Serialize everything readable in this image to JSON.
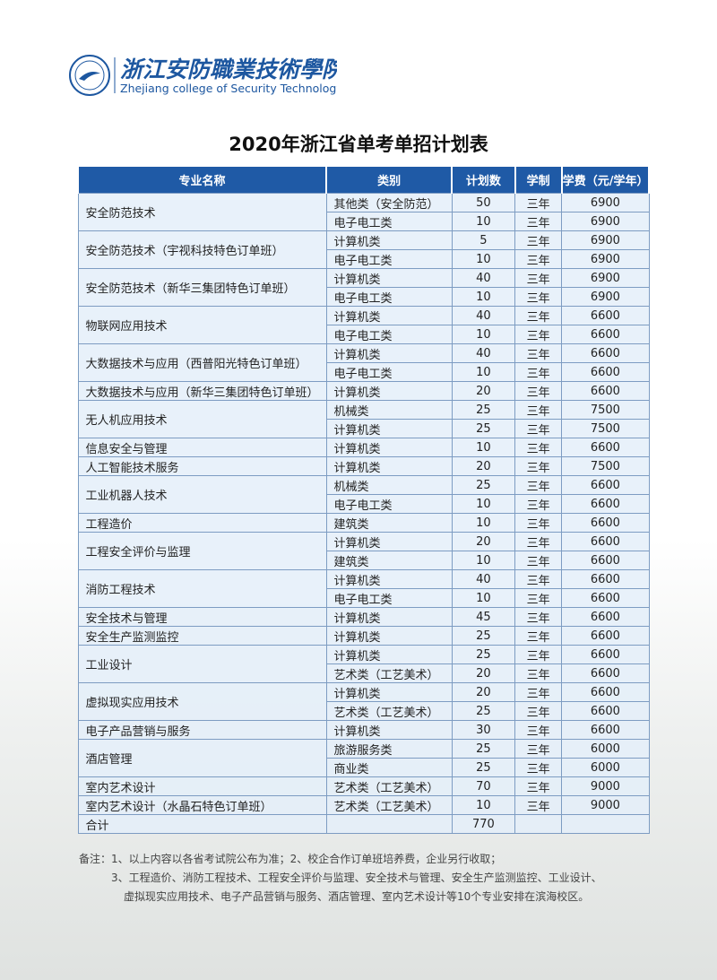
{
  "header": {
    "school_cn": "浙江安防職業技術學院",
    "school_en": "Zhejiang college of Security Technology"
  },
  "title": "2020年浙江省单考单招计划表",
  "table": {
    "columns": [
      "专业名称",
      "类别",
      "计划数",
      "学制",
      "学费（元/学年）"
    ],
    "majors": [
      {
        "name": "安全防范技术",
        "items": [
          {
            "category": "其他类（安全防范）",
            "plan": 50,
            "years": "三年",
            "fee": 6900
          },
          {
            "category": "电子电工类",
            "plan": 10,
            "years": "三年",
            "fee": 6900
          }
        ]
      },
      {
        "name": "安全防范技术（宇视科技特色订单班）",
        "items": [
          {
            "category": "计算机类",
            "plan": 5,
            "years": "三年",
            "fee": 6900
          },
          {
            "category": "电子电工类",
            "plan": 10,
            "years": "三年",
            "fee": 6900
          }
        ]
      },
      {
        "name": "安全防范技术（新华三集团特色订单班）",
        "items": [
          {
            "category": "计算机类",
            "plan": 40,
            "years": "三年",
            "fee": 6900
          },
          {
            "category": "电子电工类",
            "plan": 10,
            "years": "三年",
            "fee": 6900
          }
        ]
      },
      {
        "name": "物联网应用技术",
        "items": [
          {
            "category": "计算机类",
            "plan": 40,
            "years": "三年",
            "fee": 6600
          },
          {
            "category": "电子电工类",
            "plan": 10,
            "years": "三年",
            "fee": 6600
          }
        ]
      },
      {
        "name": "大数据技术与应用（西普阳光特色订单班）",
        "items": [
          {
            "category": "计算机类",
            "plan": 40,
            "years": "三年",
            "fee": 6600
          },
          {
            "category": "电子电工类",
            "plan": 10,
            "years": "三年",
            "fee": 6600
          }
        ]
      },
      {
        "name": "大数据技术与应用（新华三集团特色订单班）",
        "items": [
          {
            "category": "计算机类",
            "plan": 20,
            "years": "三年",
            "fee": 6600
          }
        ]
      },
      {
        "name": "无人机应用技术",
        "items": [
          {
            "category": "机械类",
            "plan": 25,
            "years": "三年",
            "fee": 7500
          },
          {
            "category": "计算机类",
            "plan": 25,
            "years": "三年",
            "fee": 7500
          }
        ]
      },
      {
        "name": "信息安全与管理",
        "items": [
          {
            "category": "计算机类",
            "plan": 10,
            "years": "三年",
            "fee": 6600
          }
        ]
      },
      {
        "name": "人工智能技术服务",
        "items": [
          {
            "category": "计算机类",
            "plan": 20,
            "years": "三年",
            "fee": 7500
          }
        ]
      },
      {
        "name": "工业机器人技术",
        "items": [
          {
            "category": "机械类",
            "plan": 25,
            "years": "三年",
            "fee": 6600
          },
          {
            "category": "电子电工类",
            "plan": 10,
            "years": "三年",
            "fee": 6600
          }
        ]
      },
      {
        "name": "工程造价",
        "items": [
          {
            "category": "建筑类",
            "plan": 10,
            "years": "三年",
            "fee": 6600
          }
        ]
      },
      {
        "name": "工程安全评价与监理",
        "items": [
          {
            "category": "计算机类",
            "plan": 20,
            "years": "三年",
            "fee": 6600
          },
          {
            "category": "建筑类",
            "plan": 10,
            "years": "三年",
            "fee": 6600
          }
        ]
      },
      {
        "name": "消防工程技术",
        "items": [
          {
            "category": "计算机类",
            "plan": 40,
            "years": "三年",
            "fee": 6600
          },
          {
            "category": "电子电工类",
            "plan": 10,
            "years": "三年",
            "fee": 6600
          }
        ]
      },
      {
        "name": "安全技术与管理",
        "items": [
          {
            "category": "计算机类",
            "plan": 45,
            "years": "三年",
            "fee": 6600
          }
        ]
      },
      {
        "name": "安全生产监测监控",
        "items": [
          {
            "category": "计算机类",
            "plan": 25,
            "years": "三年",
            "fee": 6600
          }
        ]
      },
      {
        "name": "工业设计",
        "items": [
          {
            "category": "计算机类",
            "plan": 25,
            "years": "三年",
            "fee": 6600
          },
          {
            "category": "艺术类（工艺美术）",
            "plan": 20,
            "years": "三年",
            "fee": 6600
          }
        ]
      },
      {
        "name": "虚拟现实应用技术",
        "items": [
          {
            "category": "计算机类",
            "plan": 20,
            "years": "三年",
            "fee": 6600
          },
          {
            "category": "艺术类（工艺美术）",
            "plan": 25,
            "years": "三年",
            "fee": 6600
          }
        ]
      },
      {
        "name": "电子产品营销与服务",
        "items": [
          {
            "category": "计算机类",
            "plan": 30,
            "years": "三年",
            "fee": 6600
          }
        ]
      },
      {
        "name": "酒店管理",
        "items": [
          {
            "category": "旅游服务类",
            "plan": 25,
            "years": "三年",
            "fee": 6000
          },
          {
            "category": "商业类",
            "plan": 25,
            "years": "三年",
            "fee": 6000
          }
        ]
      },
      {
        "name": "室内艺术设计",
        "items": [
          {
            "category": "艺术类（工艺美术）",
            "plan": 70,
            "years": "三年",
            "fee": 9000
          }
        ]
      },
      {
        "name": "室内艺术设计（水晶石特色订单班）",
        "items": [
          {
            "category": "艺术类（工艺美术）",
            "plan": 10,
            "years": "三年",
            "fee": 9000
          }
        ]
      }
    ],
    "total": {
      "label": "合计",
      "plan": 770
    }
  },
  "notes": [
    "备注：1、以上内容以各省考试院公布为准；2、校企合作订单班培养费，企业另行收取；",
    "3、工程造价、消防工程技术、工程安全评价与监理、安全技术与管理、安全生产监测监控、工业设计、",
    "虚拟现实应用技术、电子产品营销与服务、酒店管理、室内艺术设计等10个专业安排在滨海校区。"
  ]
}
